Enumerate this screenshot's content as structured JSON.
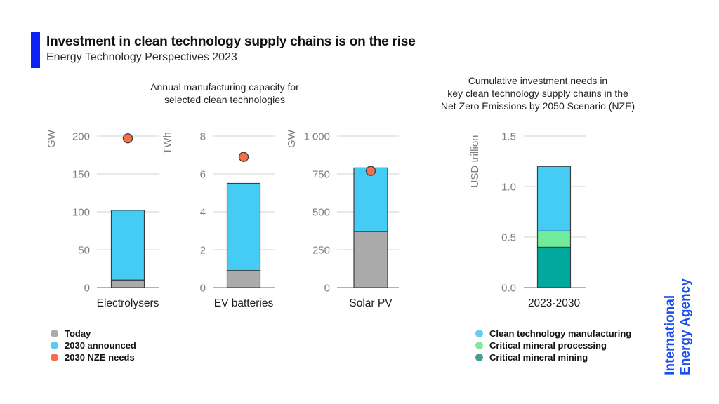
{
  "header": {
    "title": "Investment in clean technology supply chains is on the rise",
    "subtitle": "Energy Technology Perspectives 2023",
    "accent_color": "#0b22f2"
  },
  "left_section": {
    "title_lines": [
      "Annual manufacturing capacity for",
      "selected clean technologies"
    ]
  },
  "right_section": {
    "title_lines": [
      "Cumulative investment needs in",
      "key clean technology supply chains in the",
      "Net Zero Emissions by 2050 Scenario (NZE)"
    ]
  },
  "colors": {
    "today_gray": "#ababab",
    "announced_blue": "#45ccf5",
    "nze_orange": "#f3704b",
    "manufacturing_blue": "#45ccf5",
    "processing_green": "#6feb9b",
    "mining_teal": "#00a99c",
    "gridline": "#dcdcdc",
    "zero_line": "#979797",
    "bar_outline": "#3d3d3d",
    "tick_text": "#7e7e7e"
  },
  "chart_data": [
    {
      "id": "electrolysers",
      "type": "bar",
      "group_title": "Annual manufacturing capacity for selected clean technologies",
      "category": "Electrolysers",
      "unit": "GW",
      "ylim": [
        0,
        200
      ],
      "yticks": [
        {
          "value": 0,
          "label": "0"
        },
        {
          "value": 50,
          "label": "50"
        },
        {
          "value": 100,
          "label": "100"
        },
        {
          "value": 150,
          "label": "150"
        },
        {
          "value": 200,
          "label": "200"
        }
      ],
      "stack": [
        {
          "name": "Today",
          "value": 10,
          "color": "#ababab"
        },
        {
          "name": "2030 announced",
          "value": 92,
          "color": "#45ccf5"
        }
      ],
      "bar_total": 102,
      "dot": {
        "name": "2030 NZE needs",
        "value": 197,
        "color": "#f3704b"
      }
    },
    {
      "id": "ev-batteries",
      "type": "bar",
      "group_title": "Annual manufacturing capacity for selected clean technologies",
      "category": "EV batteries",
      "unit": "TWh",
      "ylim": [
        0,
        8
      ],
      "yticks": [
        {
          "value": 0,
          "label": "0"
        },
        {
          "value": 2,
          "label": "2"
        },
        {
          "value": 4,
          "label": "4"
        },
        {
          "value": 6,
          "label": "6"
        },
        {
          "value": 8,
          "label": "8"
        }
      ],
      "stack": [
        {
          "name": "Today",
          "value": 0.9,
          "color": "#ababab"
        },
        {
          "name": "2030 announced",
          "value": 4.6,
          "color": "#45ccf5"
        }
      ],
      "bar_total": 5.5,
      "dot": {
        "name": "2030 NZE needs",
        "value": 6.9,
        "color": "#f3704b"
      }
    },
    {
      "id": "solar-pv",
      "type": "bar",
      "group_title": "Annual manufacturing capacity for selected clean technologies",
      "category": "Solar PV",
      "unit": "GW",
      "ylim": [
        0,
        1000
      ],
      "yticks": [
        {
          "value": 0,
          "label": "0"
        },
        {
          "value": 250,
          "label": "250"
        },
        {
          "value": 500,
          "label": "500"
        },
        {
          "value": 750,
          "label": "750"
        },
        {
          "value": 1000,
          "label": "1 000"
        }
      ],
      "stack": [
        {
          "name": "Today",
          "value": 370,
          "color": "#ababab"
        },
        {
          "name": "2030 announced",
          "value": 420,
          "color": "#45ccf5"
        }
      ],
      "bar_total": 790,
      "dot": {
        "name": "2030 NZE needs",
        "value": 770,
        "color": "#f3704b"
      }
    },
    {
      "id": "nze-investment",
      "type": "bar",
      "group_title": "Cumulative investment needs in key clean technology supply chains in the Net Zero Emissions by 2050 Scenario (NZE)",
      "category": "2023-2030",
      "unit": "USD trillion",
      "ylim": [
        0,
        1.5
      ],
      "yticks": [
        {
          "value": 0,
          "label": "0.0"
        },
        {
          "value": 0.5,
          "label": "0.5"
        },
        {
          "value": 1.0,
          "label": "1.0"
        },
        {
          "value": 1.5,
          "label": "1.5"
        }
      ],
      "stack": [
        {
          "name": "Critical mineral mining",
          "value": 0.4,
          "color": "#00a99c"
        },
        {
          "name": "Critical mineral processing",
          "value": 0.16,
          "color": "#6feb9b"
        },
        {
          "name": "Clean technology manufacturing",
          "value": 0.64,
          "color": "#45ccf5"
        }
      ],
      "bar_total": 1.2
    }
  ],
  "legends": {
    "left": {
      "items": [
        {
          "label": "Today",
          "color": "#ababab"
        },
        {
          "label": "2030 announced",
          "color": "#5fc8f1"
        },
        {
          "label": "2030 NZE needs",
          "color": "#f3704b"
        }
      ]
    },
    "right": {
      "items": [
        {
          "label": "Clean technology manufacturing",
          "color": "#6accf1"
        },
        {
          "label": "Critical mineral processing",
          "color": "#82e89e"
        },
        {
          "label": "Critical mineral mining",
          "color": "#459e95"
        }
      ]
    }
  },
  "brand": {
    "lines": [
      "International",
      "Energy Agency"
    ],
    "color": "#1b4df2"
  }
}
